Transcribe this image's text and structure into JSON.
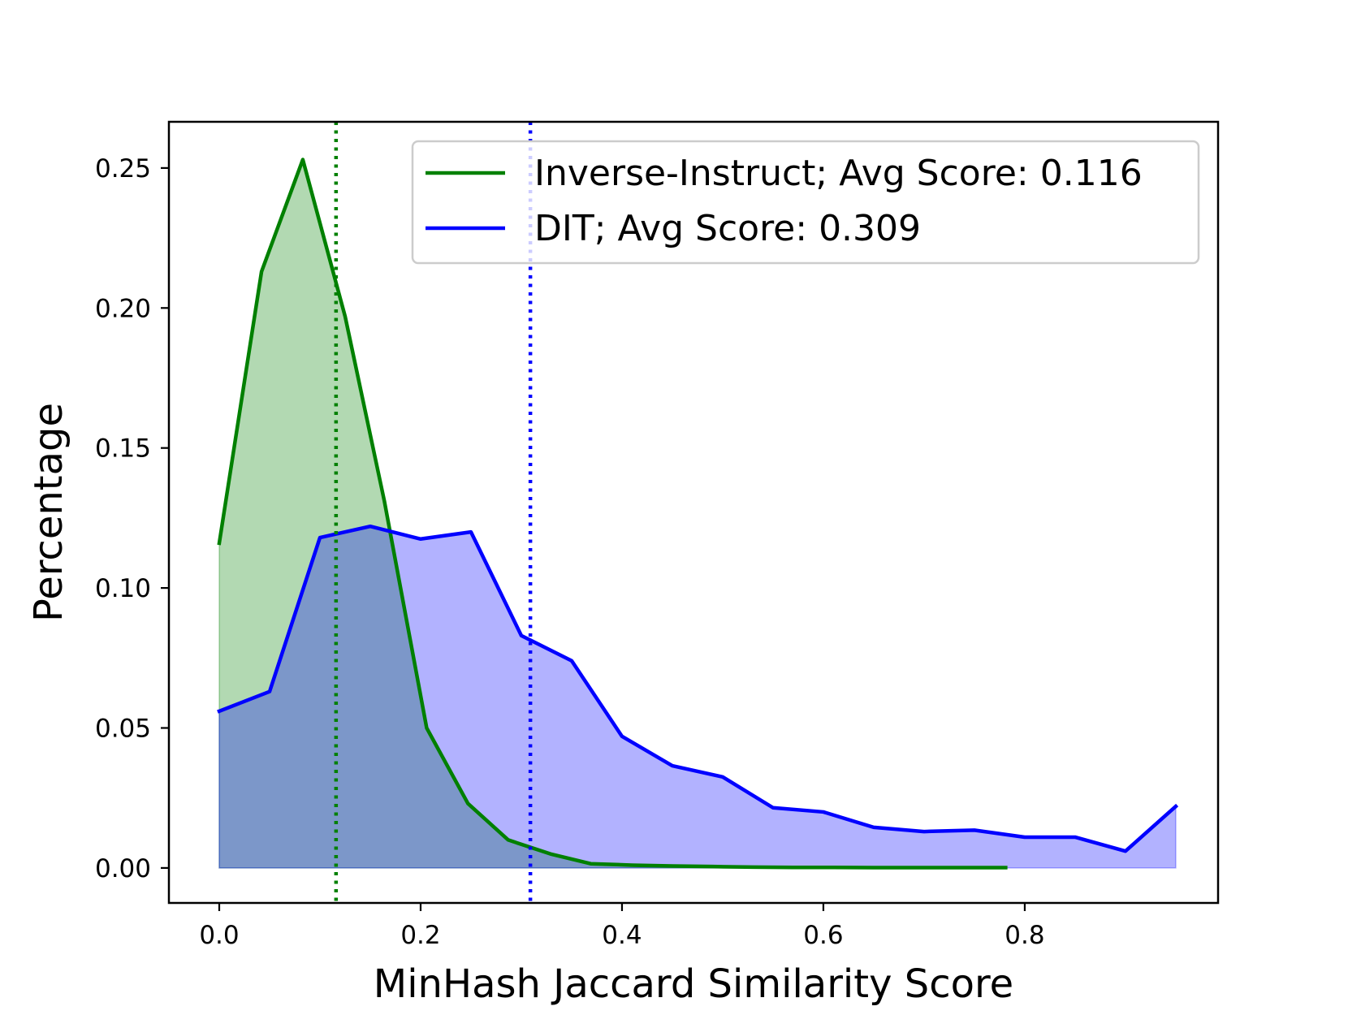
{
  "chart_data": {
    "type": "area",
    "xlabel": "MinHash Jaccard Similarity Score",
    "ylabel": "Percentage",
    "xlim": [
      -0.05,
      0.992
    ],
    "ylim": [
      -0.0125,
      0.2665
    ],
    "xticks": [
      0.0,
      0.2,
      0.4,
      0.6,
      0.8
    ],
    "xtick_labels": [
      "0.0",
      "0.2",
      "0.4",
      "0.6",
      "0.8"
    ],
    "yticks": [
      0.0,
      0.05,
      0.1,
      0.15,
      0.2,
      0.25
    ],
    "ytick_labels": [
      "0.00",
      "0.05",
      "0.10",
      "0.15",
      "0.20",
      "0.25"
    ],
    "grid": false,
    "legend_position": "top-right",
    "series": [
      {
        "name": "Inverse-Instruct; Avg Score: 0.116",
        "color": "#008000",
        "fill_color": "#b2dab2",
        "avg_line": 0.116,
        "x": [
          0.0,
          0.042,
          0.083,
          0.125,
          0.164,
          0.206,
          0.247,
          0.287,
          0.329,
          0.369,
          0.41,
          0.45,
          0.49,
          0.53,
          0.57,
          0.61,
          0.65,
          0.69,
          0.74,
          0.781
        ],
        "y": [
          0.116,
          0.213,
          0.253,
          0.197,
          0.131,
          0.05,
          0.023,
          0.01,
          0.005,
          0.0015,
          0.001,
          0.0007,
          0.0005,
          0.0003,
          0.0002,
          0.0002,
          0.0001,
          0.0001,
          0.0001,
          0.0001
        ]
      },
      {
        "name": "DIT; Avg Score: 0.309",
        "color": "#0000ff",
        "fill_color": "#b2b2fc",
        "avg_line": 0.309,
        "x": [
          0.0,
          0.05,
          0.1,
          0.15,
          0.2,
          0.25,
          0.3,
          0.35,
          0.4,
          0.45,
          0.5,
          0.55,
          0.6,
          0.65,
          0.7,
          0.75,
          0.8,
          0.85,
          0.9,
          0.95
        ],
        "y": [
          0.056,
          0.063,
          0.118,
          0.122,
          0.1175,
          0.12,
          0.083,
          0.074,
          0.047,
          0.0365,
          0.0325,
          0.0215,
          0.02,
          0.0145,
          0.013,
          0.0135,
          0.011,
          0.011,
          0.006,
          0.022
        ]
      }
    ]
  }
}
